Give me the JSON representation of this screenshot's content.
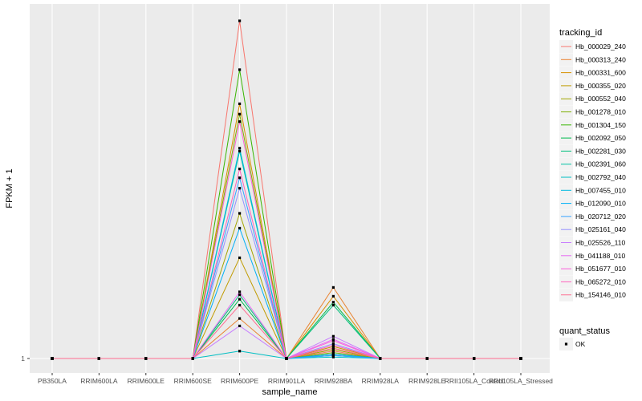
{
  "chart_data": {
    "type": "line",
    "xlabel": "sample_name",
    "ylabel": "FPKM + 1",
    "categories": [
      "PB350LA",
      "RRIM600LA",
      "RRIM600LE",
      "RRIM600SE",
      "RRIM600PE",
      "RRIM901LA",
      "RRIM928BA",
      "RRIM928LA",
      "RRIM928LE",
      "RRII105LA_Control",
      "RRII105LA_Stressed"
    ],
    "y_ticks": [
      {
        "value": 1,
        "label": "1"
      }
    ],
    "ylim": [
      0,
      25
    ],
    "grid": true,
    "legend": {
      "position": "right",
      "title": "tracking_id",
      "shape_title": "quant_status",
      "shape_items": [
        "OK"
      ]
    },
    "series": [
      {
        "name": "Hb_000029_240",
        "color": "#F8766D",
        "values": [
          1,
          1,
          1,
          1,
          23.8,
          1,
          1.5,
          1,
          1,
          1,
          1
        ]
      },
      {
        "name": "Hb_000313_240",
        "color": "#EA8331",
        "values": [
          1,
          1,
          1,
          1,
          3.7,
          1,
          5.8,
          1,
          1,
          1,
          1
        ]
      },
      {
        "name": "Hb_000331_600",
        "color": "#D89000",
        "values": [
          1,
          1,
          1,
          1,
          18.2,
          1,
          5.2,
          1,
          1,
          1,
          1
        ]
      },
      {
        "name": "Hb_000355_020",
        "color": "#C09B00",
        "values": [
          1,
          1,
          1,
          1,
          7.8,
          1,
          1.8,
          1,
          1,
          1,
          1
        ]
      },
      {
        "name": "Hb_000552_040",
        "color": "#A3A500",
        "values": [
          1,
          1,
          1,
          1,
          10.8,
          1,
          1.6,
          1,
          1,
          1,
          1
        ]
      },
      {
        "name": "Hb_001278_010",
        "color": "#7CAE00",
        "values": [
          1,
          1,
          1,
          1,
          17.5,
          1,
          1.4,
          1,
          1,
          1,
          1
        ]
      },
      {
        "name": "Hb_001304_150",
        "color": "#39B600",
        "values": [
          1,
          1,
          1,
          1,
          20.5,
          1,
          1.3,
          1,
          1,
          1,
          1
        ]
      },
      {
        "name": "Hb_002092_050",
        "color": "#00BB4E",
        "values": [
          1,
          1,
          1,
          1,
          5.0,
          1,
          4.8,
          1,
          1,
          1,
          1
        ]
      },
      {
        "name": "Hb_002281_030",
        "color": "#00BF7D",
        "values": [
          1,
          1,
          1,
          1,
          5.3,
          1,
          4.6,
          1,
          1,
          1,
          1
        ]
      },
      {
        "name": "Hb_002391_060",
        "color": "#00C1A3",
        "values": [
          1,
          1,
          1,
          1,
          15.0,
          1,
          1.2,
          1,
          1,
          1,
          1
        ]
      },
      {
        "name": "Hb_002792_040",
        "color": "#00BFC4",
        "values": [
          1,
          1,
          1,
          1,
          1.5,
          1,
          1.1,
          1,
          1,
          1,
          1
        ]
      },
      {
        "name": "Hb_007455_010",
        "color": "#00BAE0",
        "values": [
          1,
          1,
          1,
          1,
          15.2,
          1,
          1.2,
          1,
          1,
          1,
          1
        ]
      },
      {
        "name": "Hb_012090_010",
        "color": "#00B0F6",
        "values": [
          1,
          1,
          1,
          1,
          9.8,
          1,
          1.3,
          1,
          1,
          1,
          1
        ]
      },
      {
        "name": "Hb_020712_020",
        "color": "#35A2FF",
        "values": [
          1,
          1,
          1,
          1,
          13.2,
          1,
          1.2,
          1,
          1,
          1,
          1
        ]
      },
      {
        "name": "Hb_025161_040",
        "color": "#9590FF",
        "values": [
          1,
          1,
          1,
          1,
          12.5,
          1,
          2.0,
          1,
          1,
          1,
          1
        ]
      },
      {
        "name": "Hb_025526_110",
        "color": "#C77CFF",
        "values": [
          1,
          1,
          1,
          1,
          3.2,
          1,
          2.5,
          1,
          1,
          1,
          1
        ]
      },
      {
        "name": "Hb_041188_010",
        "color": "#E76BF3",
        "values": [
          1,
          1,
          1,
          1,
          5.5,
          1,
          2.3,
          1,
          1,
          1,
          1
        ]
      },
      {
        "name": "Hb_051677_010",
        "color": "#FA62DB",
        "values": [
          1,
          1,
          1,
          1,
          17.0,
          1,
          2.2,
          1,
          1,
          1,
          1
        ]
      },
      {
        "name": "Hb_065272_010",
        "color": "#FF62BC",
        "values": [
          1,
          1,
          1,
          1,
          13.8,
          1,
          1.9,
          1,
          1,
          1,
          1
        ]
      },
      {
        "name": "Hb_154146_010",
        "color": "#FF6C91",
        "values": [
          1,
          1,
          1,
          1,
          4.6,
          1,
          1.7,
          1,
          1,
          1,
          1
        ]
      }
    ]
  }
}
